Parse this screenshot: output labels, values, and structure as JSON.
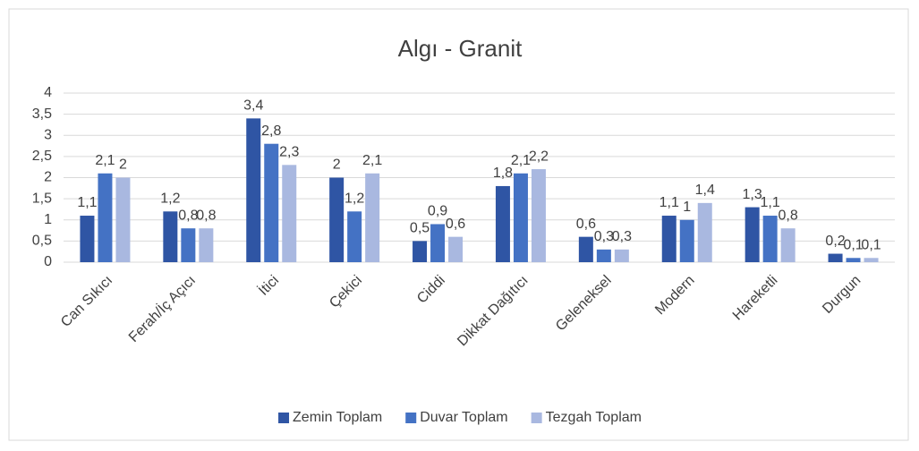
{
  "chart_data": {
    "type": "bar",
    "title": "Algı - Granit",
    "categories": [
      "Can Sıkıcı",
      "Ferah/İç Açıcı",
      "İtici",
      "Çekici",
      "Ciddi",
      "Dikkat Dağıtıcı",
      "Geleneksel",
      "Modern",
      "Hareketli",
      "Durgun"
    ],
    "series": [
      {
        "name": "Zemin Toplam",
        "color": "#2f55a4",
        "values": [
          1.1,
          1.2,
          3.4,
          2,
          0.5,
          1.8,
          0.6,
          1.1,
          1.3,
          0.2
        ],
        "value_labels": [
          "1,1",
          "1,2",
          "3,4",
          "2",
          "0,5",
          "1,8",
          "0,6",
          "1,1",
          "1,3",
          "0,2"
        ]
      },
      {
        "name": "Duvar Toplam",
        "color": "#4472c4",
        "values": [
          2.1,
          0.8,
          2.8,
          1.2,
          0.9,
          2.1,
          0.3,
          1,
          1.1,
          0.1
        ],
        "value_labels": [
          "2,1",
          "0,8",
          "2,8",
          "1,2",
          "0,9",
          "2,1",
          "0,3",
          "1",
          "1,1",
          "0,1"
        ]
      },
      {
        "name": "Tezgah Toplam",
        "color": "#a9b8e0",
        "values": [
          2,
          0.8,
          2.3,
          2.1,
          0.6,
          2.2,
          0.3,
          1.4,
          0.8,
          0.1
        ],
        "value_labels": [
          "2",
          "0,8",
          "2,3",
          "2,1",
          "0,6",
          "2,2",
          "0,3",
          "1,4",
          "0,8",
          "0,1"
        ]
      }
    ],
    "ylim": [
      0,
      4
    ],
    "yticks": [
      0,
      {
        "value": 0.5,
        "label": "0,5"
      },
      1,
      {
        "value": 1.5,
        "label": "1,5"
      },
      2,
      {
        "value": 2.5,
        "label": "2,5"
      },
      3,
      {
        "value": 3.5,
        "label": "3,5"
      },
      4
    ],
    "grid": true,
    "legend": "bottom"
  }
}
